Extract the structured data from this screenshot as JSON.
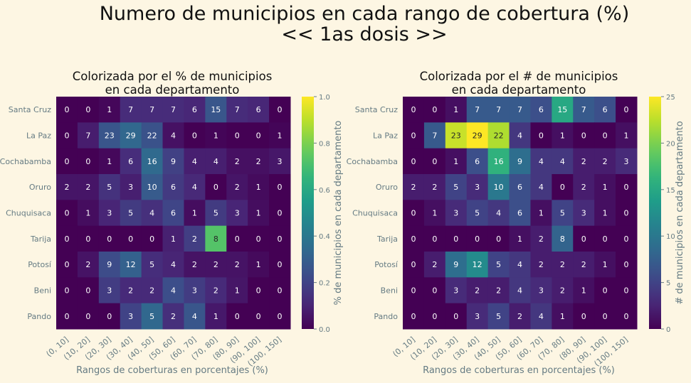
{
  "page": {
    "title_line1": "Numero de municipios en cada rango de cobertura (%)",
    "title_line2": "<< 1as dosis >>"
  },
  "chart_data": [
    {
      "type": "heatmap",
      "title_line1": "Colorizada por el % de municipios",
      "title_line2": "en cada departamento",
      "xlabel": "Rangos de coberturas en porcentajes (%)",
      "colorbar_label": "% de municipios en cada departamento",
      "colorbar_range": [
        0,
        1
      ],
      "colorbar_ticks": [
        "0.0",
        "0.2",
        "0.4",
        "0.6",
        "0.8",
        "1.0"
      ],
      "color_mode": "row_fraction",
      "colormap": "viridis",
      "grid": false
    },
    {
      "type": "heatmap",
      "title_line1": "Colorizada por el # de municipios",
      "title_line2": "en cada departamento",
      "xlabel": "Rangos de coberturas en porcentajes (%)",
      "colorbar_label": "# de municipios en cada departamento",
      "colorbar_range": [
        0,
        25
      ],
      "colorbar_ticks": [
        "0",
        "5",
        "10",
        "15",
        "20",
        "25"
      ],
      "color_mode": "count",
      "colormap": "viridis",
      "grid": false
    }
  ],
  "shared": {
    "rows": [
      "Santa Cruz",
      "La Paz",
      "Cochabamba",
      "Oruro",
      "Chuquisaca",
      "Tarija",
      "Potosí",
      "Beni",
      "Pando"
    ],
    "columns": [
      "(0, 10]",
      "(10, 20]",
      "(20, 30]",
      "(30, 40]",
      "(40, 50]",
      "(50, 60]",
      "(60, 70]",
      "(70, 80]",
      "(80, 90]",
      "(90, 100]",
      "(100, 150]"
    ],
    "values": [
      [
        0,
        0,
        1,
        7,
        7,
        7,
        6,
        15,
        7,
        6,
        0
      ],
      [
        0,
        7,
        23,
        29,
        22,
        4,
        0,
        1,
        0,
        0,
        1
      ],
      [
        0,
        0,
        1,
        6,
        16,
        9,
        4,
        4,
        2,
        2,
        3
      ],
      [
        2,
        2,
        5,
        3,
        10,
        6,
        4,
        0,
        2,
        1,
        0
      ],
      [
        0,
        1,
        3,
        5,
        4,
        6,
        1,
        5,
        3,
        1,
        0
      ],
      [
        0,
        0,
        0,
        0,
        0,
        1,
        2,
        8,
        0,
        0,
        0
      ],
      [
        0,
        2,
        9,
        12,
        5,
        4,
        2,
        2,
        2,
        1,
        0
      ],
      [
        0,
        0,
        3,
        2,
        2,
        4,
        3,
        2,
        1,
        0,
        0
      ],
      [
        0,
        0,
        0,
        3,
        5,
        2,
        4,
        1,
        0,
        0,
        0
      ]
    ]
  },
  "colors": {
    "background": "#fdf6e3",
    "text": "#111111",
    "tick_text": "#657b83"
  }
}
